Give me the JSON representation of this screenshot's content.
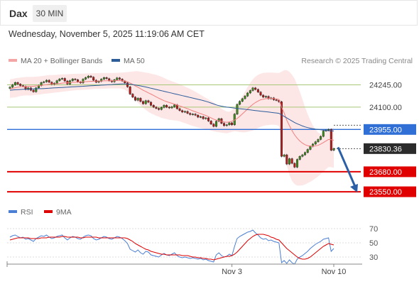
{
  "header": {
    "symbol": "Dax",
    "timeframe": "30 MIN"
  },
  "timestamp": "Wednesday, November 5, 2025 11:19:06 AM CET",
  "legend": {
    "items": [
      {
        "label": "MA 20 + Bollinger Bands",
        "color": "#f4a6a6"
      },
      {
        "label": "MA 50",
        "color": "#2c5c9a"
      }
    ]
  },
  "credit": "Research © 2025 Trading Central",
  "rsi_legend": {
    "items": [
      {
        "label": "RSI",
        "color": "#4a7fd4"
      },
      {
        "label": "9MA",
        "color": "#dd0000"
      }
    ]
  },
  "chart_data": [
    {
      "type": "candlestick",
      "ylim": [
        23495,
        24335
      ],
      "x_ticks": [
        "Nov 3",
        "Nov 10"
      ],
      "levels": [
        {
          "label": "24245.00",
          "value": 24245,
          "kind": "resistance",
          "color": "#a8c878"
        },
        {
          "label": "24100.00",
          "value": 24100,
          "kind": "resistance",
          "color": "#a8c878"
        },
        {
          "label": "23955.00",
          "value": 23955,
          "kind": "pivot",
          "color": "#2f6fd6"
        },
        {
          "label": "23830.36",
          "value": 23830.36,
          "kind": "last",
          "color": "#333333"
        },
        {
          "label": "23680.00",
          "value": 23680,
          "kind": "support",
          "color": "#e00000"
        },
        {
          "label": "23550.00",
          "value": 23550,
          "kind": "support",
          "color": "#e00000"
        }
      ],
      "close": [
        24230,
        24245,
        24260,
        24250,
        24240,
        24235,
        24215,
        24225,
        24210,
        24200,
        24225,
        24240,
        24260,
        24265,
        24275,
        24262,
        24248,
        24255,
        24272,
        24283,
        24287,
        24270,
        24250,
        24272,
        24283,
        24278,
        24265,
        24258,
        24282,
        24292,
        24302,
        24295,
        24275,
        24262,
        24268,
        24282,
        24292,
        24285,
        24272,
        24265,
        24278,
        24290,
        24282,
        24270,
        24258,
        24232,
        24185,
        24165,
        24145,
        24158,
        24137,
        24122,
        24142,
        24132,
        24112,
        24100,
        24092,
        24085,
        24098,
        24112,
        24100,
        24095,
        24102,
        24115,
        24090,
        24078,
        24068,
        24072,
        24060,
        24052,
        24055,
        24048,
        24035,
        24038,
        24025,
        24030,
        24010,
        23990,
        23975,
        24008,
        24025,
        23995,
        23980,
        23985,
        23998,
        23985,
        24055,
        24118,
        24138,
        24155,
        24172,
        24192,
        24208,
        24225,
        24215,
        24198,
        24178,
        24165,
        24170,
        24155,
        24160,
        24148,
        24145,
        24135,
        23780,
        23790,
        23730,
        23765,
        23735,
        23710,
        23760,
        23780,
        23790,
        23805,
        23825,
        23845,
        23860,
        23875,
        23890,
        23910,
        23945,
        23950,
        23955,
        23820,
        23830.36
      ],
      "ma20": [
        24218,
        24222,
        24226,
        24230,
        24232,
        24234,
        24234,
        24236,
        24236,
        24236,
        24238,
        24240,
        24242,
        24244,
        24246,
        24248,
        24250,
        24250,
        24252,
        24254,
        24256,
        24258,
        24258,
        24260,
        24261,
        24262,
        24263,
        24264,
        24265,
        24266,
        24267,
        24268,
        24268,
        24269,
        24269,
        24270,
        24271,
        24272,
        24272,
        24272,
        24272,
        24273,
        24273,
        24272,
        24270,
        24265,
        24257,
        24248,
        24238,
        24230,
        24220,
        24210,
        24202,
        24193,
        24185,
        24176,
        24167,
        24158,
        24150,
        24142,
        24136,
        24130,
        24125,
        24120,
        24114,
        24108,
        24102,
        24096,
        24090,
        24083,
        24076,
        24070,
        24064,
        24058,
        24052,
        24046,
        24038,
        24030,
        24022,
        24016,
        24012,
        24008,
        24004,
        24002,
        24004,
        24008,
        24016,
        24026,
        24040,
        24056,
        24072,
        24088,
        24104,
        24118,
        24130,
        24140,
        24148,
        24152,
        24155,
        24156,
        24157,
        24156,
        24154,
        24150,
        24100,
        24062,
        24015,
        23980,
        23948,
        23920,
        23898,
        23880,
        23866,
        23856,
        23850,
        23846,
        23846,
        23848,
        23852,
        23860,
        23870,
        23880,
        23890,
        23888,
        23885
      ],
      "bb_upper": [
        24280,
        24284,
        24288,
        24290,
        24292,
        24294,
        24296,
        24296,
        24296,
        24297,
        24298,
        24300,
        24302,
        24304,
        24306,
        24308,
        24308,
        24309,
        24310,
        24312,
        24313,
        24314,
        24314,
        24315,
        24316,
        24317,
        24317,
        24318,
        24318,
        24319,
        24320,
        24320,
        24320,
        24321,
        24321,
        24322,
        24322,
        24322,
        24322,
        24322,
        24322,
        24323,
        24324,
        24325,
        24326,
        24328,
        24330,
        24332,
        24333,
        24333,
        24330,
        24328,
        24325,
        24322,
        24318,
        24314,
        24310,
        24304,
        24298,
        24290,
        24282,
        24275,
        24268,
        24262,
        24256,
        24250,
        24242,
        24234,
        24226,
        24218,
        24210,
        24200,
        24190,
        24180,
        24170,
        24160,
        24150,
        24140,
        24130,
        24118,
        24105,
        24090,
        24080,
        24072,
        24070,
        24080,
        24098,
        24120,
        24145,
        24172,
        24200,
        24230,
        24258,
        24280,
        24298,
        24310,
        24318,
        24322,
        24324,
        24325,
        24325,
        24324,
        24323,
        24322,
        24330,
        24340,
        24340,
        24330,
        24310,
        24285,
        24245,
        24200,
        24150,
        24100,
        24055,
        24015,
        23980,
        23955,
        23935,
        23925,
        23928,
        23940,
        23955,
        23962,
        23965
      ],
      "bb_lower": [
        24160,
        24162,
        24164,
        24168,
        24172,
        24175,
        24176,
        24176,
        24176,
        24178,
        24180,
        24182,
        24184,
        24186,
        24188,
        24190,
        24192,
        24194,
        24196,
        24198,
        24200,
        24202,
        24204,
        24206,
        24208,
        24210,
        24211,
        24212,
        24213,
        24214,
        24215,
        24216,
        24218,
        24219,
        24219,
        24220,
        24220,
        24221,
        24222,
        24222,
        24222,
        24222,
        24222,
        24219,
        24214,
        24202,
        24186,
        24165,
        24145,
        24128,
        24112,
        24096,
        24082,
        24070,
        24060,
        24052,
        24044,
        24038,
        24030,
        24026,
        24022,
        24018,
        24016,
        24014,
        24012,
        24008,
        24002,
        23996,
        23990,
        23984,
        23978,
        23973,
        23968,
        23964,
        23960,
        23956,
        23952,
        23948,
        23944,
        23940,
        23937,
        23935,
        23932,
        23930,
        23935,
        23940,
        23944,
        23942,
        23938,
        23936,
        23936,
        23940,
        23944,
        23948,
        23956,
        23964,
        23972,
        23978,
        23982,
        23984,
        23986,
        23986,
        23984,
        23978,
        23880,
        23800,
        23720,
        23660,
        23620,
        23600,
        23590,
        23590,
        23592,
        23598,
        23606,
        23615,
        23625,
        23638,
        23650,
        23665,
        23680,
        23696,
        23710,
        23710,
        23705
      ],
      "ma50": [
        24210,
        24212,
        24213,
        24214,
        24215,
        24216,
        24217,
        24217,
        24218,
        24218,
        24219,
        24220,
        24220,
        24221,
        24222,
        24223,
        24224,
        24225,
        24226,
        24227,
        24228,
        24229,
        24230,
        24231,
        24232,
        24233,
        24234,
        24235,
        24236,
        24237,
        24238,
        24239,
        24240,
        24241,
        24242,
        24243,
        24244,
        24245,
        24246,
        24247,
        24248,
        24249,
        24250,
        24251,
        24251,
        24250,
        24249,
        24247,
        24244,
        24241,
        24238,
        24235,
        24231,
        24227,
        24223,
        24219,
        24215,
        24211,
        24207,
        24203,
        24199,
        24195,
        24191,
        24187,
        24183,
        24179,
        24175,
        24171,
        24167,
        24163,
        24159,
        24155,
        24151,
        24147,
        24143,
        24138,
        24133,
        24127,
        24121,
        24115,
        24110,
        24106,
        24103,
        24100,
        24098,
        24096,
        24094,
        24092,
        24090,
        24088,
        24086,
        24084,
        24082,
        24080,
        24078,
        24076,
        24074,
        24072,
        24070,
        24068,
        24066,
        24064,
        24062,
        24060,
        24050,
        24040,
        24030,
        24020,
        24010,
        24000,
        23992,
        23985,
        23978,
        23972,
        23967,
        23963,
        23960,
        23957,
        23955,
        23953,
        23951,
        23949,
        23947,
        23946,
        23945
      ],
      "x_tick_index": {
        "Nov 3": 85,
        "Nov 10": 124
      },
      "proj_arrow": {
        "from": 23830,
        "to": 23555
      }
    },
    {
      "type": "line",
      "ylim": [
        20,
        80
      ],
      "y_ticks": [
        70,
        50,
        30
      ],
      "series": [
        {
          "name": "RSI",
          "values": [
            58,
            60,
            61,
            59,
            57,
            58,
            55,
            56,
            54,
            52,
            56,
            58,
            60,
            59,
            61,
            58,
            56,
            57,
            59,
            60,
            61,
            57,
            54,
            57,
            59,
            58,
            56,
            55,
            58,
            60,
            61,
            60,
            56,
            54,
            55,
            57,
            59,
            58,
            56,
            55,
            57,
            59,
            58,
            56,
            53,
            49,
            41,
            39,
            37,
            40,
            36,
            34,
            38,
            37,
            33,
            32,
            31,
            30,
            33,
            35,
            33,
            32,
            34,
            36,
            32,
            30,
            29,
            30,
            29,
            28,
            29,
            28,
            27,
            28,
            26,
            27,
            25,
            24,
            23,
            33,
            36,
            32,
            30,
            31,
            34,
            32,
            45,
            56,
            59,
            61,
            63,
            65,
            66,
            68,
            64,
            61,
            57,
            55,
            56,
            53,
            54,
            52,
            51,
            50,
            22,
            25,
            21,
            26,
            22,
            20,
            27,
            30,
            32,
            35,
            38,
            42,
            45,
            48,
            50,
            52,
            55,
            56,
            57,
            38,
            42
          ]
        },
        {
          "name": "9MA",
          "values": [
            54,
            55,
            56,
            57,
            57,
            57,
            57,
            57,
            56,
            56,
            56,
            56,
            57,
            57,
            57,
            58,
            58,
            58,
            58,
            58,
            59,
            59,
            58,
            58,
            58,
            58,
            58,
            57,
            57,
            58,
            58,
            58,
            58,
            58,
            57,
            57,
            57,
            57,
            57,
            57,
            57,
            57,
            57,
            57,
            57,
            56,
            54,
            52,
            49,
            47,
            45,
            43,
            41,
            40,
            38,
            37,
            36,
            35,
            34,
            34,
            33,
            33,
            33,
            33,
            33,
            33,
            32,
            32,
            32,
            31,
            30,
            30,
            29,
            29,
            28,
            28,
            27,
            27,
            26,
            27,
            28,
            29,
            30,
            31,
            31,
            32,
            34,
            37,
            41,
            45,
            49,
            53,
            56,
            59,
            61,
            62,
            62,
            62,
            61,
            60,
            58,
            57,
            55,
            54,
            50,
            46,
            42,
            39,
            36,
            33,
            30,
            28,
            27,
            27,
            28,
            30,
            33,
            36,
            39,
            42,
            45,
            47,
            49,
            48,
            47
          ]
        }
      ]
    }
  ]
}
